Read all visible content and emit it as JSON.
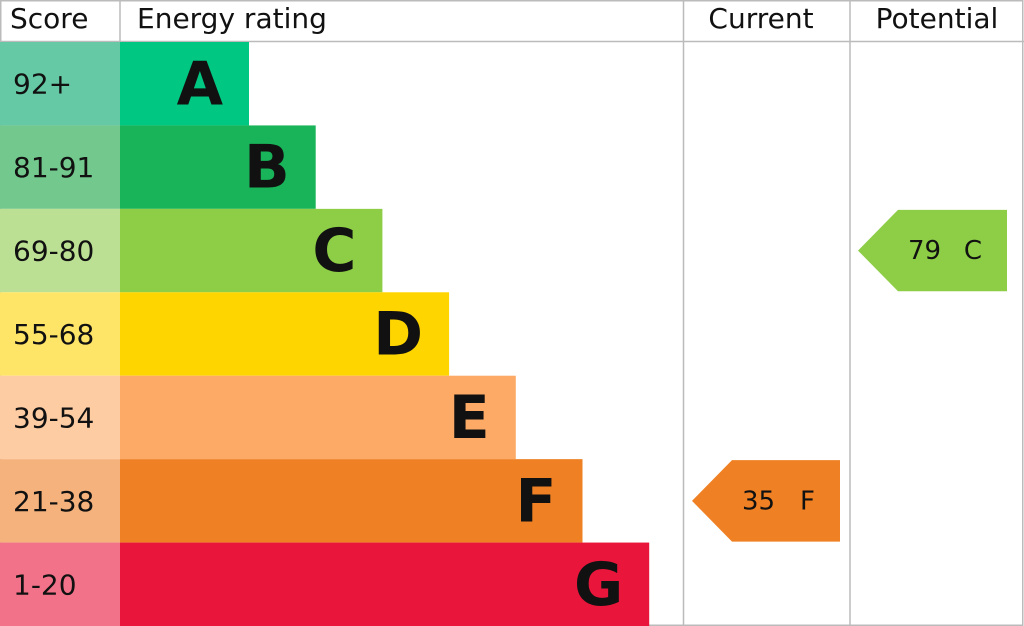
{
  "headers": {
    "score": "Score",
    "rating": "Energy rating",
    "current": "Current",
    "potential": "Potential"
  },
  "bands": [
    {
      "score": "92+",
      "letter": "A",
      "color": "#00c781",
      "score_color": "#64c9a4"
    },
    {
      "score": "81-91",
      "letter": "B",
      "color": "#19b459",
      "score_color": "#73c88d"
    },
    {
      "score": "69-80",
      "letter": "C",
      "color": "#8dce46",
      "score_color": "#bbe093"
    },
    {
      "score": "55-68",
      "letter": "D",
      "color": "#ffd500",
      "score_color": "#ffe567"
    },
    {
      "score": "39-54",
      "letter": "E",
      "color": "#fcaa65",
      "score_color": "#fdcca3"
    },
    {
      "score": "21-38",
      "letter": "F",
      "color": "#ef8023",
      "score_color": "#f5b27c"
    },
    {
      "score": "1-20",
      "letter": "G",
      "color": "#e9153b",
      "score_color": "#f27389"
    }
  ],
  "current": {
    "value": 35,
    "letter": "F"
  },
  "potential": {
    "value": 79,
    "letter": "C"
  }
}
